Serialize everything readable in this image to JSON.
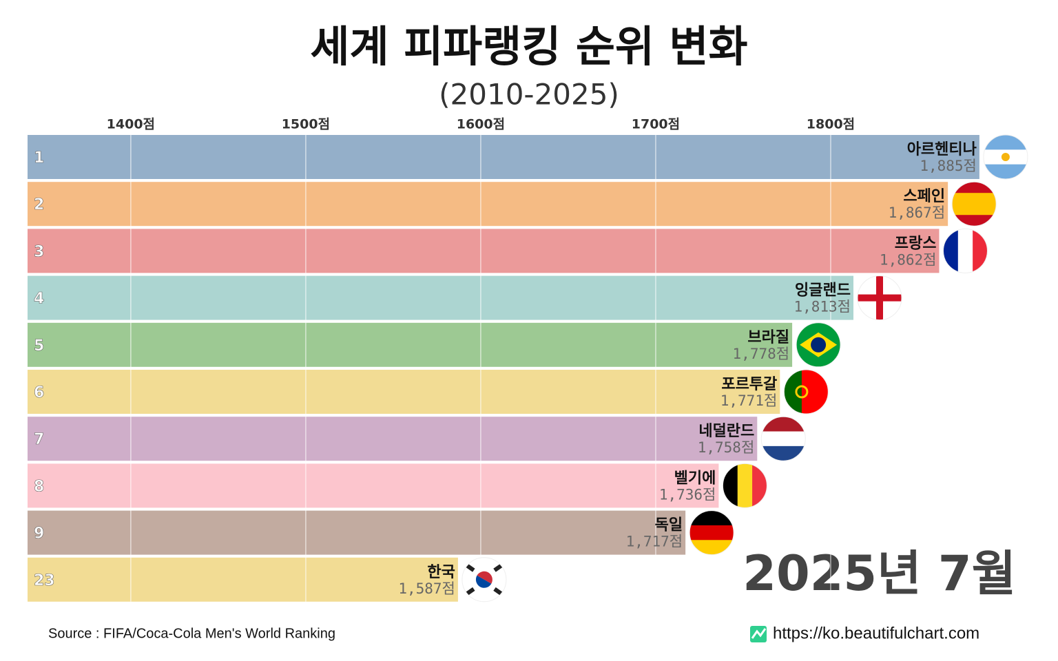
{
  "chart_data": {
    "type": "bar",
    "orientation": "horizontal",
    "title": "세계 피파랭킹 순위 변화",
    "subtitle": "(2010-2025)",
    "period_label": "2025년 7월",
    "categories": [
      "아르헨티나",
      "스페인",
      "프랑스",
      "잉글랜드",
      "브라질",
      "포르투갈",
      "네덜란드",
      "벨기에",
      "독일",
      "한국"
    ],
    "ranks": [
      "1",
      "2",
      "3",
      "4",
      "5",
      "6",
      "7",
      "8",
      "9",
      "23"
    ],
    "values": [
      1885,
      1867,
      1862,
      1813,
      1778,
      1771,
      1758,
      1736,
      1717,
      1587
    ],
    "value_labels": [
      "1,885점",
      "1,867점",
      "1,862점",
      "1,813점",
      "1,778점",
      "1,771점",
      "1,758점",
      "1,736점",
      "1,717점",
      "1,587점"
    ],
    "colors": [
      "#94afc9",
      "#f5bb84",
      "#eb9a9a",
      "#acd5d1",
      "#9dc993",
      "#f2dc94",
      "#cfaec9",
      "#fcc5cd",
      "#c2aba0",
      "#f2dc94"
    ],
    "xlim": [
      1341,
      1900
    ],
    "xticks": [
      {
        "value": 1400,
        "label": "1400점"
      },
      {
        "value": 1500,
        "label": "1500점"
      },
      {
        "value": 1600,
        "label": "1600점"
      },
      {
        "value": 1700,
        "label": "1700점"
      },
      {
        "value": 1800,
        "label": "1800점"
      }
    ],
    "grid": true,
    "source": "Source : FIFA/Coca-Cola Men's World Ranking",
    "website": "https://ko.beautifulchart.com"
  }
}
